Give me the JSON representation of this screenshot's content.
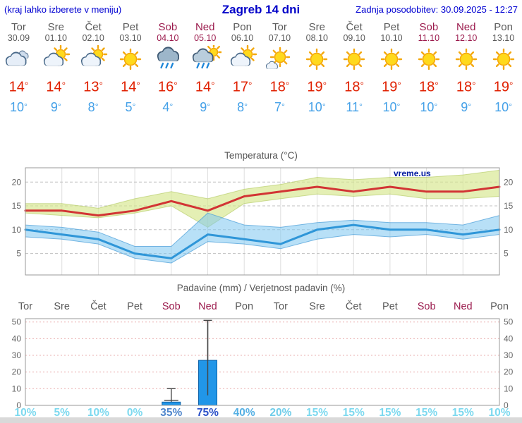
{
  "header": {
    "left_note": "(kraj lahko izberete v meniju)",
    "title": "Zagreb 14 dni",
    "last_update": "Zadnja posodobitev: 30.09.2025 - 12:27"
  },
  "days": [
    {
      "name": "Tor",
      "date": "30.09",
      "icon": "cloudy",
      "tmax": "14°",
      "tmin": "10°",
      "weekend": false
    },
    {
      "name": "Sre",
      "date": "01.10",
      "icon": "sun-cloud",
      "tmax": "14°",
      "tmin": "9°",
      "weekend": false
    },
    {
      "name": "Čet",
      "date": "02.10",
      "icon": "sun-cloud",
      "tmax": "13°",
      "tmin": "8°",
      "weekend": false
    },
    {
      "name": "Pet",
      "date": "03.10",
      "icon": "sunny",
      "tmax": "14°",
      "tmin": "5°",
      "weekend": false
    },
    {
      "name": "Sob",
      "date": "04.10",
      "icon": "rain",
      "tmax": "16°",
      "tmin": "4°",
      "weekend": true
    },
    {
      "name": "Ned",
      "date": "05.10",
      "icon": "rain-sun",
      "tmax": "14°",
      "tmin": "9°",
      "weekend": true
    },
    {
      "name": "Pon",
      "date": "06.10",
      "icon": "sun-cloud",
      "tmax": "17°",
      "tmin": "8°",
      "weekend": false
    },
    {
      "name": "Tor",
      "date": "07.10",
      "icon": "mostly-sunny",
      "tmax": "18°",
      "tmin": "7°",
      "weekend": false
    },
    {
      "name": "Sre",
      "date": "08.10",
      "icon": "sunny",
      "tmax": "19°",
      "tmin": "10°",
      "weekend": false
    },
    {
      "name": "Čet",
      "date": "09.10",
      "icon": "sunny",
      "tmax": "18°",
      "tmin": "11°",
      "weekend": false
    },
    {
      "name": "Pet",
      "date": "10.10",
      "icon": "sunny",
      "tmax": "19°",
      "tmin": "10°",
      "weekend": false
    },
    {
      "name": "Sob",
      "date": "11.10",
      "icon": "sunny",
      "tmax": "18°",
      "tmin": "10°",
      "weekend": true
    },
    {
      "name": "Ned",
      "date": "12.10",
      "icon": "sunny",
      "tmax": "18°",
      "tmin": "9°",
      "weekend": true
    },
    {
      "name": "Pon",
      "date": "13.10",
      "icon": "sunny",
      "tmax": "19°",
      "tmin": "10°",
      "weekend": false
    }
  ],
  "chart_data": [
    {
      "type": "line",
      "title": "Temperatura (°C)",
      "watermark": "vreme.us",
      "categories": [
        "Tor 30.09",
        "Sre 01.10",
        "Čet 02.10",
        "Pet 03.10",
        "Sob 04.10",
        "Ned 05.10",
        "Pon 06.10",
        "Tor 07.10",
        "Sre 08.10",
        "Čet 09.10",
        "Pet 10.10",
        "Sob 11.10",
        "Ned 12.10",
        "Pon 13.10"
      ],
      "ylim": [
        0.5,
        23
      ],
      "yticks": [
        5,
        10,
        15,
        20
      ],
      "grid": true,
      "legend": false,
      "series": [
        {
          "name": "tmax",
          "color": "#d23434",
          "values": [
            14,
            14,
            13,
            14,
            16,
            14,
            17,
            18,
            19,
            18,
            19,
            18,
            18,
            19
          ]
        },
        {
          "name": "tmin",
          "color": "#2f96d8",
          "values": [
            10,
            9,
            8,
            5,
            4,
            9,
            8,
            7,
            10,
            11,
            10,
            10,
            9,
            10
          ]
        },
        {
          "name": "tmax_band_upper",
          "color": "#d8e696",
          "values": [
            15.5,
            15.5,
            14.5,
            16.5,
            18,
            16.5,
            18.5,
            19.5,
            21,
            20.5,
            21,
            21,
            21.5,
            22.5
          ]
        },
        {
          "name": "tmax_band_lower",
          "color": "#d8e696",
          "values": [
            13.5,
            13,
            12.5,
            13.5,
            15,
            10.5,
            15.5,
            16.5,
            17.5,
            17,
            17.5,
            16.5,
            16.5,
            17
          ]
        },
        {
          "name": "tmin_band_upper",
          "color": "#9fd4f2",
          "values": [
            11,
            10.5,
            9.5,
            6.5,
            6.5,
            13.5,
            11,
            10.5,
            11.5,
            12,
            11.5,
            11.5,
            11,
            13
          ]
        },
        {
          "name": "tmin_band_lower",
          "color": "#9fd4f2",
          "values": [
            8.5,
            8,
            7,
            4,
            3,
            7.5,
            7,
            6,
            8,
            9,
            8.5,
            9,
            8,
            9
          ]
        }
      ]
    },
    {
      "type": "bar",
      "title": "Padavine (mm) / Verjetnost padavin (%)",
      "day_labels": [
        "Tor",
        "Sre",
        "Čet",
        "Pet",
        "Sob",
        "Ned",
        "Pon",
        "Tor",
        "Sre",
        "Čet",
        "Pet",
        "Sob",
        "Ned",
        "Pon"
      ],
      "ylim": [
        0,
        52
      ],
      "yticks": [
        0,
        10,
        20,
        30,
        40,
        50
      ],
      "bar_color": "#2196e8",
      "bars": [
        {
          "mm": 0
        },
        {
          "mm": 0
        },
        {
          "mm": 0
        },
        {
          "mm": 0
        },
        {
          "mm": 2,
          "whisker_max": 10,
          "cap": 3
        },
        {
          "mm": 27,
          "whisker_max": 51,
          "whisker_min": 6
        },
        {
          "mm": 0
        },
        {
          "mm": 0
        },
        {
          "mm": 0
        },
        {
          "mm": 0
        },
        {
          "mm": 0
        },
        {
          "mm": 0
        },
        {
          "mm": 0
        },
        {
          "mm": 0
        }
      ],
      "probabilities": [
        {
          "label": "10%",
          "color": "#7cd9ef"
        },
        {
          "label": "5%",
          "color": "#7cd9ef"
        },
        {
          "label": "10%",
          "color": "#7cd9ef"
        },
        {
          "label": "0%",
          "color": "#7cd9ef"
        },
        {
          "label": "35%",
          "color": "#4f86cc"
        },
        {
          "label": "75%",
          "color": "#2b50c8"
        },
        {
          "label": "40%",
          "color": "#55b0e4"
        },
        {
          "label": "20%",
          "color": "#6fcdea"
        },
        {
          "label": "15%",
          "color": "#7cd9ef"
        },
        {
          "label": "15%",
          "color": "#7cd9ef"
        },
        {
          "label": "15%",
          "color": "#7cd9ef"
        },
        {
          "label": "15%",
          "color": "#7cd9ef"
        },
        {
          "label": "15%",
          "color": "#7cd9ef"
        },
        {
          "label": "10%",
          "color": "#7cd9ef"
        }
      ]
    }
  ]
}
